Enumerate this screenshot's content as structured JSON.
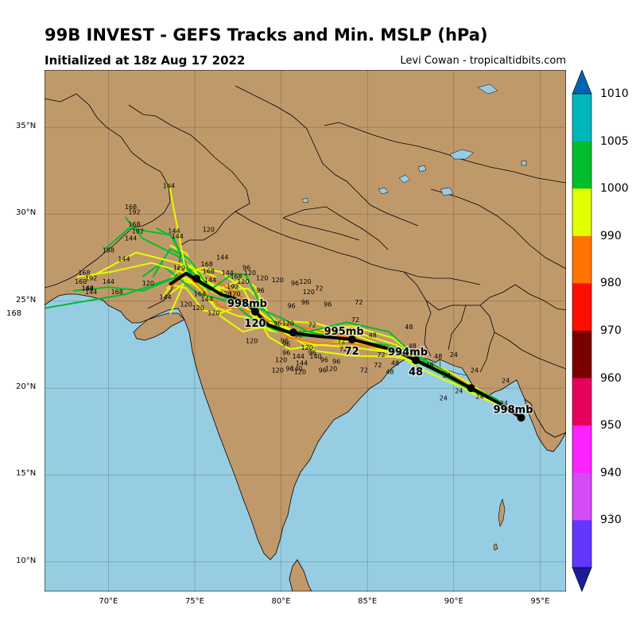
{
  "header": {
    "title": "99B INVEST - GEFS Tracks and Min. MSLP (hPa)",
    "subtitle": "Initialized at 18z Aug 17 2022",
    "credit": "Levi Cowan - tropicaltidbits.com"
  },
  "map": {
    "lon_range": [
      66.3,
      96.5
    ],
    "lat_range": [
      8.3,
      38.3
    ],
    "lat_ticks": [
      "10°N",
      "15°N",
      "20°N",
      "25°N",
      "30°N",
      "35°N"
    ],
    "lon_ticks": [
      "70°E",
      "75°E",
      "80°E",
      "85°E",
      "90°E",
      "95°E"
    ],
    "colors": {
      "land": "#c0996b",
      "ocean": "#97cde3",
      "mean_track": "#000000",
      "grid": "#000000"
    },
    "stray_label": "168"
  },
  "mean_track": {
    "points": [
      {
        "lon": 73.6,
        "lat": 26.0
      },
      {
        "lon": 74.5,
        "lat": 26.6
      },
      {
        "lon": 75.5,
        "lat": 26.0
      },
      {
        "lon": 76.5,
        "lat": 25.4
      },
      {
        "lon": 77.8,
        "lat": 25.0
      },
      {
        "lon": 78.5,
        "lat": 24.4
      },
      {
        "lon": 79.3,
        "lat": 23.6
      },
      {
        "lon": 80.5,
        "lat": 23.2
      },
      {
        "lon": 82.0,
        "lat": 23.0
      },
      {
        "lon": 84.1,
        "lat": 22.8
      },
      {
        "lon": 86.5,
        "lat": 22.2
      },
      {
        "lon": 87.8,
        "lat": 21.6
      },
      {
        "lon": 89.5,
        "lat": 20.8
      },
      {
        "lon": 91.0,
        "lat": 20.0
      },
      {
        "lon": 92.5,
        "lat": 19.2
      },
      {
        "lon": 93.9,
        "lat": 18.3
      }
    ],
    "markers": [
      {
        "lon": 93.9,
        "lat": 18.3,
        "pressure": "998mb",
        "hour": ""
      },
      {
        "lon": 87.8,
        "lat": 21.6,
        "pressure": "994mb",
        "hour": "48"
      },
      {
        "lon": 84.1,
        "lat": 22.8,
        "pressure": "995mb",
        "hour": "72"
      },
      {
        "lon": 78.5,
        "lat": 24.4,
        "pressure": "998mb",
        "hour": "120"
      },
      {
        "lon": 75.1,
        "lat": 26.3,
        "pressure": "",
        "hour": ""
      },
      {
        "lon": 80.7,
        "lat": 23.2,
        "pressure": "",
        "hour": ""
      },
      {
        "lon": 91.0,
        "lat": 20.0,
        "pressure": "",
        "hour": ""
      }
    ]
  },
  "ensemble_labels": [
    {
      "lon": 93.0,
      "lat": 20.3,
      "text": "24"
    },
    {
      "lon": 91.2,
      "lat": 20.9,
      "text": "24"
    },
    {
      "lon": 90.0,
      "lat": 21.8,
      "text": "24"
    },
    {
      "lon": 89.6,
      "lat": 20.6,
      "text": "24"
    },
    {
      "lon": 92.9,
      "lat": 19.0,
      "text": "24"
    },
    {
      "lon": 91.5,
      "lat": 19.4,
      "text": "24"
    },
    {
      "lon": 89.4,
      "lat": 19.3,
      "text": "24"
    },
    {
      "lon": 90.3,
      "lat": 19.7,
      "text": "24"
    },
    {
      "lon": 88.6,
      "lat": 21.2,
      "text": "48"
    },
    {
      "lon": 87.6,
      "lat": 22.3,
      "text": "48"
    },
    {
      "lon": 86.6,
      "lat": 21.3,
      "text": "48"
    },
    {
      "lon": 85.3,
      "lat": 22.9,
      "text": "48"
    },
    {
      "lon": 89.1,
      "lat": 21.7,
      "text": "48"
    },
    {
      "lon": 87.4,
      "lat": 23.4,
      "text": "48"
    },
    {
      "lon": 86.3,
      "lat": 20.8,
      "text": "48"
    },
    {
      "lon": 87.8,
      "lat": 21.0,
      "text": "48"
    },
    {
      "lon": 84.3,
      "lat": 23.8,
      "text": "72"
    },
    {
      "lon": 85.6,
      "lat": 21.2,
      "text": "72"
    },
    {
      "lon": 84.8,
      "lat": 20.9,
      "text": "72"
    },
    {
      "lon": 85.8,
      "lat": 21.8,
      "text": "72"
    },
    {
      "lon": 83.6,
      "lat": 22.1,
      "text": "72"
    },
    {
      "lon": 84.5,
      "lat": 24.8,
      "text": "72"
    },
    {
      "lon": 82.2,
      "lat": 25.6,
      "text": "72"
    },
    {
      "lon": 81.8,
      "lat": 23.5,
      "text": "72"
    },
    {
      "lon": 83.2,
      "lat": 23.1,
      "text": "72"
    },
    {
      "lon": 83.5,
      "lat": 22.6,
      "text": "72"
    },
    {
      "lon": 82.7,
      "lat": 24.7,
      "text": "96"
    },
    {
      "lon": 81.4,
      "lat": 24.8,
      "text": "96"
    },
    {
      "lon": 80.6,
      "lat": 24.6,
      "text": "96"
    },
    {
      "lon": 80.3,
      "lat": 22.4,
      "text": "96"
    },
    {
      "lon": 81.8,
      "lat": 21.9,
      "text": "96"
    },
    {
      "lon": 81.0,
      "lat": 22.9,
      "text": "96"
    },
    {
      "lon": 80.3,
      "lat": 21.9,
      "text": "96"
    },
    {
      "lon": 82.4,
      "lat": 20.9,
      "text": "96"
    },
    {
      "lon": 80.8,
      "lat": 25.9,
      "text": "96"
    },
    {
      "lon": 79.8,
      "lat": 23.6,
      "text": "96"
    },
    {
      "lon": 78.0,
      "lat": 26.8,
      "text": "96"
    },
    {
      "lon": 82.5,
      "lat": 21.5,
      "text": "96"
    },
    {
      "lon": 80.5,
      "lat": 21.0,
      "text": "96"
    },
    {
      "lon": 83.2,
      "lat": 21.4,
      "text": "96"
    },
    {
      "lon": 80.2,
      "lat": 22.6,
      "text": "96"
    },
    {
      "lon": 78.8,
      "lat": 25.5,
      "text": "96"
    },
    {
      "lon": 80.0,
      "lat": 21.5,
      "text": "120"
    },
    {
      "lon": 79.8,
      "lat": 20.9,
      "text": "120"
    },
    {
      "lon": 78.3,
      "lat": 22.6,
      "text": "120"
    },
    {
      "lon": 76.1,
      "lat": 24.2,
      "text": "120"
    },
    {
      "lon": 75.2,
      "lat": 24.5,
      "text": "120"
    },
    {
      "lon": 74.5,
      "lat": 24.7,
      "text": "120"
    },
    {
      "lon": 76.8,
      "lat": 25.3,
      "text": "120"
    },
    {
      "lon": 77.8,
      "lat": 26.0,
      "text": "120"
    },
    {
      "lon": 78.9,
      "lat": 26.2,
      "text": "120"
    },
    {
      "lon": 80.4,
      "lat": 23.6,
      "text": "120"
    },
    {
      "lon": 81.1,
      "lat": 20.8,
      "text": "120"
    },
    {
      "lon": 81.5,
      "lat": 22.2,
      "text": "120"
    },
    {
      "lon": 82.9,
      "lat": 21.0,
      "text": "120"
    },
    {
      "lon": 81.6,
      "lat": 25.4,
      "text": "120"
    },
    {
      "lon": 79.8,
      "lat": 26.1,
      "text": "120"
    },
    {
      "lon": 81.4,
      "lat": 26.0,
      "text": "120"
    },
    {
      "lon": 72.3,
      "lat": 25.9,
      "text": "120"
    },
    {
      "lon": 74.1,
      "lat": 26.8,
      "text": "120"
    },
    {
      "lon": 75.8,
      "lat": 29.0,
      "text": "120"
    },
    {
      "lon": 78.2,
      "lat": 26.5,
      "text": "120"
    },
    {
      "lon": 77.3,
      "lat": 25.3,
      "text": "120"
    },
    {
      "lon": 73.3,
      "lat": 25.1,
      "text": "144"
    },
    {
      "lon": 81.0,
      "lat": 21.7,
      "text": "144"
    },
    {
      "lon": 81.2,
      "lat": 21.3,
      "text": "144"
    },
    {
      "lon": 76.9,
      "lat": 26.5,
      "text": "144"
    },
    {
      "lon": 76.6,
      "lat": 27.4,
      "text": "144"
    },
    {
      "lon": 75.7,
      "lat": 25.0,
      "text": "144"
    },
    {
      "lon": 73.5,
      "lat": 31.5,
      "text": "144"
    },
    {
      "lon": 73.8,
      "lat": 28.9,
      "text": "144"
    },
    {
      "lon": 74.0,
      "lat": 28.6,
      "text": "144"
    },
    {
      "lon": 71.3,
      "lat": 28.5,
      "text": "144"
    },
    {
      "lon": 70.9,
      "lat": 27.3,
      "text": "144"
    },
    {
      "lon": 70.0,
      "lat": 26.0,
      "text": "144"
    },
    {
      "lon": 69.0,
      "lat": 25.4,
      "text": "144"
    },
    {
      "lon": 68.8,
      "lat": 25.6,
      "text": "144"
    },
    {
      "lon": 75.9,
      "lat": 26.1,
      "text": "144"
    },
    {
      "lon": 80.9,
      "lat": 21.0,
      "text": "140"
    },
    {
      "lon": 82.0,
      "lat": 21.7,
      "text": "140"
    },
    {
      "lon": 71.7,
      "lat": 28.9,
      "text": "192"
    },
    {
      "lon": 71.5,
      "lat": 30.0,
      "text": "192"
    },
    {
      "lon": 77.2,
      "lat": 25.7,
      "text": "192"
    },
    {
      "lon": 69.0,
      "lat": 26.2,
      "text": "192"
    },
    {
      "lon": 71.3,
      "lat": 30.3,
      "text": "168"
    },
    {
      "lon": 71.5,
      "lat": 29.3,
      "text": "168"
    },
    {
      "lon": 70.0,
      "lat": 27.8,
      "text": "168"
    },
    {
      "lon": 68.6,
      "lat": 26.5,
      "text": "168"
    },
    {
      "lon": 68.8,
      "lat": 25.6,
      "text": "168"
    },
    {
      "lon": 70.5,
      "lat": 25.4,
      "text": "168"
    },
    {
      "lon": 75.7,
      "lat": 27.0,
      "text": "168"
    },
    {
      "lon": 75.3,
      "lat": 25.3,
      "text": "168"
    },
    {
      "lon": 77.4,
      "lat": 26.3,
      "text": "168"
    },
    {
      "lon": 75.8,
      "lat": 26.6,
      "text": "168"
    },
    {
      "lon": 68.4,
      "lat": 26.0,
      "text": "168"
    }
  ],
  "colorbar": {
    "levels": [
      "1010",
      "1005",
      "1000",
      "990",
      "980",
      "970",
      "960",
      "950",
      "940",
      "930"
    ],
    "bands": [
      "#00b6be",
      "#00bd2b",
      "#e1ff00",
      "#ff7400",
      "#fa0f00",
      "#7a0000",
      "#e8005d",
      "#ff21ff",
      "#d54bf5",
      "#6436ff"
    ],
    "top_arrow": "#0064b5",
    "bottom_arrow": "#1a1c9a"
  }
}
